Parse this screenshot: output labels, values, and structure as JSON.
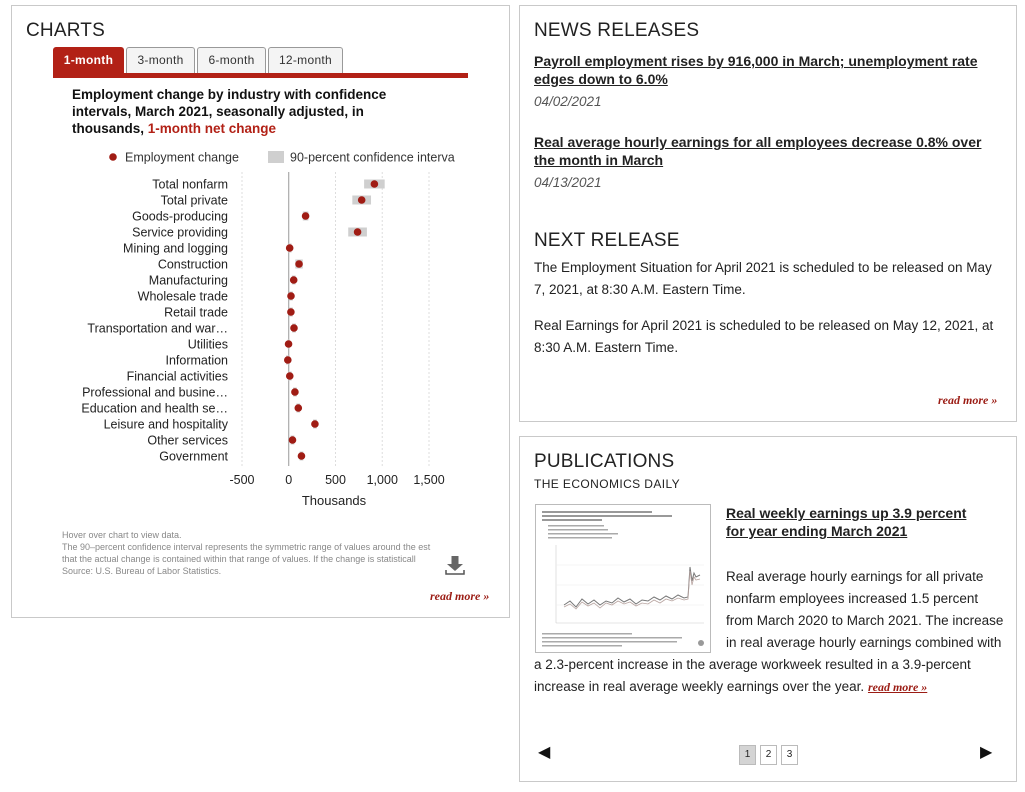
{
  "charts": {
    "title": "CHARTS",
    "tabs": [
      "1-month",
      "3-month",
      "6-month",
      "12-month"
    ],
    "active_tab": 0,
    "chart_title_main": "Employment change by industry with confidence intervals, March 2021, seasonally adjusted, in thousands,",
    "chart_title_highlight": "1-month net change",
    "legend": {
      "point_label": "Employment change",
      "interval_label": "90-percent confidence interva"
    },
    "notes": [
      "Hover over chart to view data.",
      "The 90–percent confidence interval represents the symmetric range of values around the est",
      "that the actual change is contained within that range of values. If the change is statisticall",
      "Source: U.S. Bureau of Labor Statistics."
    ],
    "read_more": "read more »",
    "colors": {
      "accent": "#b22116",
      "point": "#a01c14",
      "interval": "#cfcfcf"
    }
  },
  "chart_data": {
    "type": "scatter",
    "title": "Employment change by industry with confidence intervals, March 2021, seasonally adjusted, in thousands, 1-month net change",
    "xlabel": "Thousands",
    "xlim": [
      -500,
      1500
    ],
    "xticks": [
      -500,
      0,
      500,
      1000,
      1500
    ],
    "xtick_labels": [
      "-500",
      "0",
      "500",
      "1,000",
      "1,500"
    ],
    "grid": "vertical",
    "legend_position": "top",
    "categories": [
      "Total nonfarm",
      "Total private",
      "Goods-producing",
      "Service providing",
      "Mining and logging",
      "Construction",
      "Manufacturing",
      "Wholesale trade",
      "Retail trade",
      "Transportation and war…",
      "Utilities",
      "Information",
      "Financial activities",
      "Professional and busine…",
      "Education and health se…",
      "Leisure and hospitality",
      "Other services",
      "Government"
    ],
    "series": [
      {
        "name": "Employment change",
        "values": [
          916,
          780,
          180,
          736,
          10,
          110,
          53,
          24,
          23,
          56,
          -2,
          -10,
          11,
          66,
          102,
          280,
          40,
          136
        ]
      },
      {
        "name": "90-percent confidence interva",
        "low": [
          806,
          680,
          150,
          636,
          -10,
          70,
          33,
          4,
          3,
          36,
          -12,
          -30,
          -9,
          46,
          82,
          260,
          20,
          116
        ],
        "high": [
          1026,
          880,
          210,
          836,
          30,
          150,
          73,
          44,
          43,
          76,
          8,
          10,
          31,
          86,
          122,
          300,
          60,
          156
        ]
      }
    ]
  },
  "news": {
    "title": "NEWS RELEASES",
    "items": [
      {
        "headline": "Payroll employment rises by 916,000 in March; unemployment rate edges down to 6.0%",
        "date": "04/02/2021"
      },
      {
        "headline": "Real average hourly earnings for all employees decrease 0.8% over the month in March",
        "date": "04/13/2021"
      }
    ],
    "next_title": "NEXT RELEASE",
    "next_items": [
      "The Employment Situation for April 2021 is scheduled to be released on May 7, 2021, at 8:30 A.M. Eastern Time.",
      "Real Earnings for April 2021 is scheduled to be released on May 12, 2021, at 8:30 A.M. Eastern Time."
    ],
    "read_more": "read more »"
  },
  "publications": {
    "title": "PUBLICATIONS",
    "subtitle": "THE ECONOMICS DAILY",
    "headline": "Real weekly earnings up 3.9 percent for year ending March 2021",
    "body": "Real average hourly earnings for all private nonfarm employees increased 1.5 percent from March 2020 to March 2021. The increase in real average hourly earnings combined with a 2.3-percent increase in the average workweek resulted in a 3.9-percent increase in real average weekly earnings over the year.",
    "read_more": "read more »",
    "pages": [
      "1",
      "2",
      "3"
    ],
    "active_page": 0,
    "prev_icon": "arrow-left-icon",
    "next_icon": "arrow-right-icon"
  }
}
